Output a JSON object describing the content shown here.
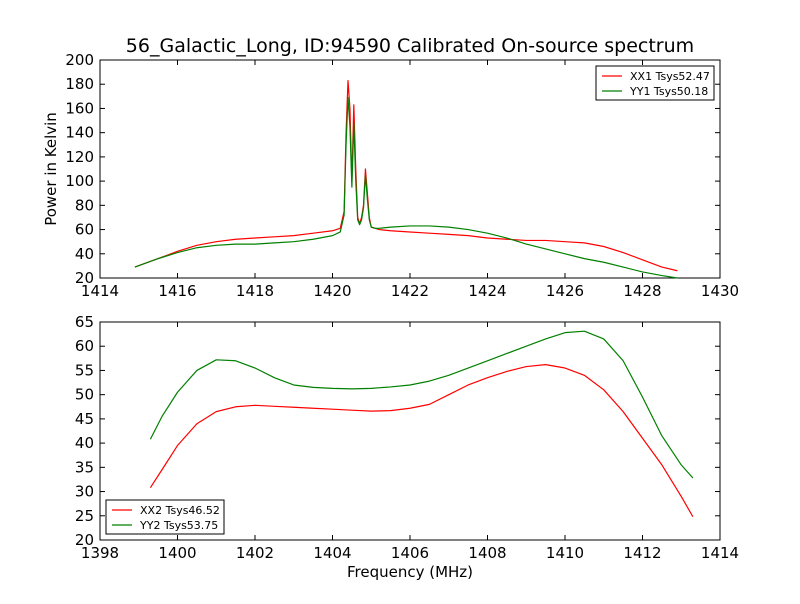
{
  "figure": {
    "title": "56_Galactic_Long, ID:94590 Calibrated On-source spectrum"
  },
  "chart_data": [
    {
      "type": "line",
      "title": "56_Galactic_Long, ID:94590 Calibrated On-source spectrum",
      "xlabel": "",
      "ylabel": "Power in Kelvin",
      "xlim": [
        1414,
        1430
      ],
      "ylim": [
        20,
        200
      ],
      "xticks": [
        "1414",
        "1416",
        "1418",
        "1420",
        "1422",
        "1424",
        "1426",
        "1428",
        "1430"
      ],
      "yticks": [
        "20",
        "40",
        "60",
        "80",
        "100",
        "120",
        "140",
        "160",
        "180",
        "200"
      ],
      "legend_position": "top-right",
      "grid": false,
      "series": [
        {
          "name": "XX1 Tsys52.47",
          "color": "#ff0000",
          "x": [
            1414.9,
            1415.5,
            1416.0,
            1416.5,
            1417.0,
            1417.5,
            1418.0,
            1418.5,
            1419.0,
            1419.5,
            1420.0,
            1420.2,
            1420.3,
            1420.35,
            1420.4,
            1420.45,
            1420.5,
            1420.55,
            1420.6,
            1420.65,
            1420.7,
            1420.75,
            1420.8,
            1420.85,
            1420.9,
            1420.95,
            1421.0,
            1421.1,
            1421.2,
            1421.5,
            1422.0,
            1422.5,
            1423.0,
            1423.5,
            1424.0,
            1424.5,
            1425.0,
            1425.5,
            1426.0,
            1426.5,
            1427.0,
            1427.5,
            1428.0,
            1428.5,
            1428.9
          ],
          "y": [
            29,
            36,
            42,
            47,
            50,
            52,
            53,
            54,
            55,
            57,
            59,
            61,
            75,
            140,
            183,
            160,
            100,
            163,
            110,
            70,
            65,
            70,
            80,
            110,
            90,
            70,
            62,
            61,
            60,
            59,
            58,
            57,
            56,
            55,
            53,
            52,
            51,
            51,
            50,
            49,
            46,
            41,
            35,
            29,
            26
          ]
        },
        {
          "name": "YY1 Tsys50.18",
          "color": "#008000",
          "x": [
            1414.9,
            1415.5,
            1416.0,
            1416.5,
            1417.0,
            1417.5,
            1418.0,
            1418.5,
            1419.0,
            1419.5,
            1420.0,
            1420.2,
            1420.3,
            1420.35,
            1420.4,
            1420.45,
            1420.5,
            1420.55,
            1420.6,
            1420.65,
            1420.7,
            1420.75,
            1420.8,
            1420.85,
            1420.9,
            1420.95,
            1421.0,
            1421.1,
            1421.2,
            1421.5,
            1422.0,
            1422.5,
            1423.0,
            1423.5,
            1424.0,
            1424.5,
            1425.0,
            1425.5,
            1426.0,
            1426.5,
            1427.0,
            1427.5,
            1428.0,
            1428.5,
            1428.9
          ],
          "y": [
            29,
            36,
            41,
            45,
            47,
            48,
            48,
            49,
            50,
            52,
            55,
            58,
            72,
            130,
            169,
            145,
            95,
            148,
            100,
            68,
            64,
            68,
            78,
            105,
            85,
            68,
            62,
            61,
            61,
            62,
            63,
            63,
            62,
            60,
            57,
            53,
            48,
            44,
            40,
            36,
            33,
            29,
            25,
            22,
            20
          ]
        }
      ]
    },
    {
      "type": "line",
      "title": "",
      "xlabel": "Frequency (MHz)",
      "ylabel": "",
      "xlim": [
        1398,
        1414
      ],
      "ylim": [
        20,
        65
      ],
      "xticks": [
        "1398",
        "1400",
        "1402",
        "1404",
        "1406",
        "1408",
        "1410",
        "1412",
        "1414"
      ],
      "yticks": [
        "20",
        "25",
        "30",
        "35",
        "40",
        "45",
        "50",
        "55",
        "60",
        "65"
      ],
      "legend_position": "bottom-left",
      "grid": false,
      "series": [
        {
          "name": "XX2 Tsys46.52",
          "color": "#ff0000",
          "x": [
            1399.3,
            1399.6,
            1400.0,
            1400.5,
            1401.0,
            1401.5,
            1402.0,
            1402.5,
            1403.0,
            1403.5,
            1404.0,
            1404.5,
            1405.0,
            1405.5,
            1406.0,
            1406.5,
            1407.0,
            1407.5,
            1408.0,
            1408.5,
            1409.0,
            1409.5,
            1410.0,
            1410.5,
            1411.0,
            1411.5,
            1412.0,
            1412.5,
            1413.0,
            1413.3
          ],
          "y": [
            30.8,
            34.5,
            39.5,
            44.0,
            46.5,
            47.5,
            47.8,
            47.6,
            47.4,
            47.2,
            47.0,
            46.8,
            46.6,
            46.7,
            47.2,
            48.0,
            50.0,
            52.0,
            53.5,
            54.8,
            55.8,
            56.2,
            55.5,
            54.0,
            51.0,
            46.5,
            41.0,
            35.5,
            29.0,
            24.8
          ]
        },
        {
          "name": "YY2 Tsys53.75",
          "color": "#008000",
          "x": [
            1399.3,
            1399.6,
            1400.0,
            1400.5,
            1401.0,
            1401.5,
            1402.0,
            1402.5,
            1403.0,
            1403.5,
            1404.0,
            1404.5,
            1405.0,
            1405.5,
            1406.0,
            1406.5,
            1407.0,
            1407.5,
            1408.0,
            1408.5,
            1409.0,
            1409.5,
            1410.0,
            1410.5,
            1411.0,
            1411.5,
            1412.0,
            1412.5,
            1413.0,
            1413.3
          ],
          "y": [
            40.8,
            45.5,
            50.5,
            55.0,
            57.2,
            57.0,
            55.5,
            53.5,
            52.0,
            51.5,
            51.3,
            51.2,
            51.3,
            51.6,
            52.0,
            52.8,
            54.0,
            55.5,
            57.0,
            58.5,
            60.0,
            61.5,
            62.8,
            63.1,
            61.5,
            57.0,
            49.5,
            41.5,
            35.5,
            32.8
          ]
        }
      ]
    }
  ]
}
